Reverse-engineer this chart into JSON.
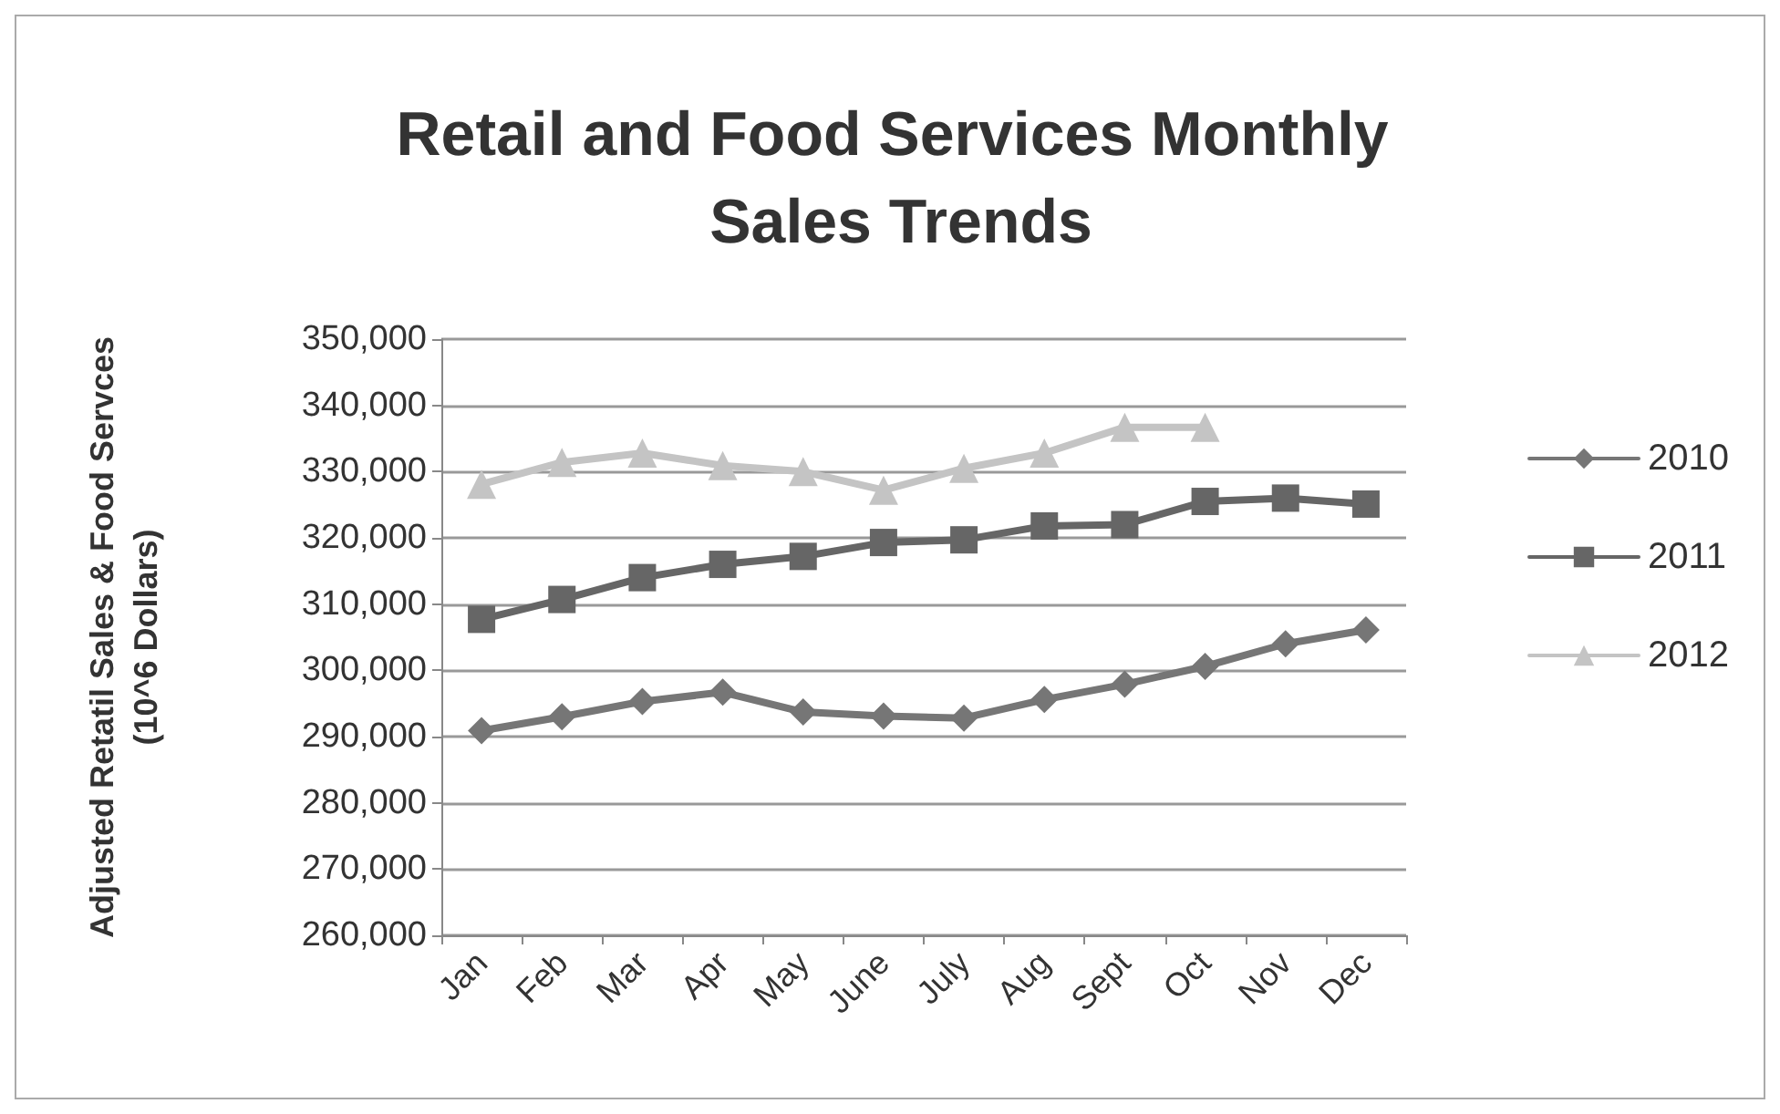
{
  "chart_data": {
    "type": "line",
    "title": "Retail and Food Services Monthly Sales Trends",
    "ylabel": "Adjusted Retatil Sales & Food Servces\n(10^6 Dollars)",
    "categories": [
      "Jan",
      "Feb",
      "Mar",
      "Apr",
      "May",
      "June",
      "July",
      "Aug",
      "Sept",
      "Oct",
      "Nov",
      "Dec"
    ],
    "series": [
      {
        "name": "2010",
        "color": "#767676",
        "marker": "diamond",
        "values": [
          290900,
          293000,
          295300,
          296700,
          293700,
          293100,
          292800,
          295600,
          297900,
          300600,
          304000,
          306100
        ]
      },
      {
        "name": "2011",
        "color": "#666666",
        "marker": "square",
        "values": [
          307700,
          310700,
          314000,
          316000,
          317200,
          319300,
          319700,
          321800,
          322000,
          325500,
          326000,
          325100
        ]
      },
      {
        "name": "2012",
        "color": "#c4c4c4",
        "marker": "triangle",
        "values": [
          328100,
          331400,
          332800,
          330900,
          330000,
          327200,
          330500,
          332800,
          336700,
          336700,
          null,
          null
        ]
      }
    ],
    "ylim": [
      260000,
      350000
    ],
    "yticks": [
      {
        "value": 260000,
        "label": "260,000"
      },
      {
        "value": 270000,
        "label": "270,000"
      },
      {
        "value": 280000,
        "label": "280,000"
      },
      {
        "value": 290000,
        "label": "290,000"
      },
      {
        "value": 300000,
        "label": "300,000"
      },
      {
        "value": 310000,
        "label": "310,000"
      },
      {
        "value": 320000,
        "label": "320,000"
      },
      {
        "value": 330000,
        "label": "330,000"
      },
      {
        "value": 340000,
        "label": "340,000"
      },
      {
        "value": 350000,
        "label": "350,000"
      }
    ],
    "grid": "y",
    "legend": "right",
    "line_style": "solid"
  }
}
